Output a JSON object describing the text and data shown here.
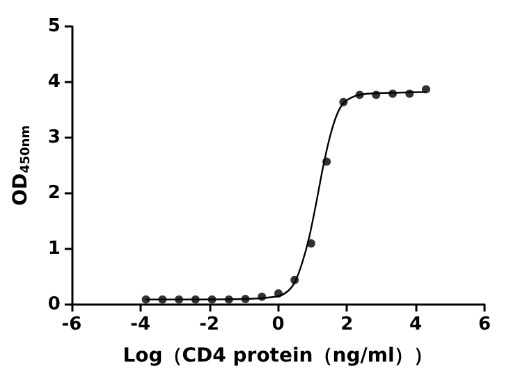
{
  "chart_data": {
    "type": "scatter",
    "xlabel": "Log（CD4 protein（ng/ml））",
    "ylabel": "OD$_{450nm}$",
    "xlim": [
      -6,
      6
    ],
    "xticks": [
      -6,
      -4,
      -2,
      0,
      2,
      4,
      6
    ],
    "ylim": [
      0,
      5
    ],
    "yticks": [
      0,
      1,
      2,
      3,
      4,
      5
    ],
    "grid": false,
    "series": [
      {
        "color": "#000000",
        "marker": "circle",
        "x": [
          -3.84,
          -3.36,
          -2.88,
          -2.4,
          -1.92,
          -1.43,
          -0.95,
          -0.47,
          0.01,
          0.48,
          0.96,
          1.41,
          1.9,
          2.37,
          2.85,
          3.33,
          3.82,
          4.3
        ],
        "values": [
          0.09,
          0.09,
          0.09,
          0.09,
          0.09,
          0.09,
          0.1,
          0.14,
          0.2,
          0.44,
          1.1,
          2.57,
          3.64,
          3.77,
          3.77,
          3.79,
          3.79,
          3.87
        ]
      },
      {
        "type": "line",
        "color": "#000000",
        "marker": "none",
        "line_style": "solid",
        "x": [
          -3.84,
          -1,
          0,
          0.3,
          0.5,
          0.7,
          0.9,
          1.1,
          1.3,
          1.5,
          1.7,
          1.9,
          2.2,
          2.6,
          3.5,
          4.3
        ],
        "values": [
          0.09,
          0.1,
          0.15,
          0.25,
          0.42,
          0.75,
          1.2,
          1.8,
          2.45,
          3.0,
          3.4,
          3.62,
          3.74,
          3.79,
          3.81,
          3.82
        ]
      }
    ]
  }
}
